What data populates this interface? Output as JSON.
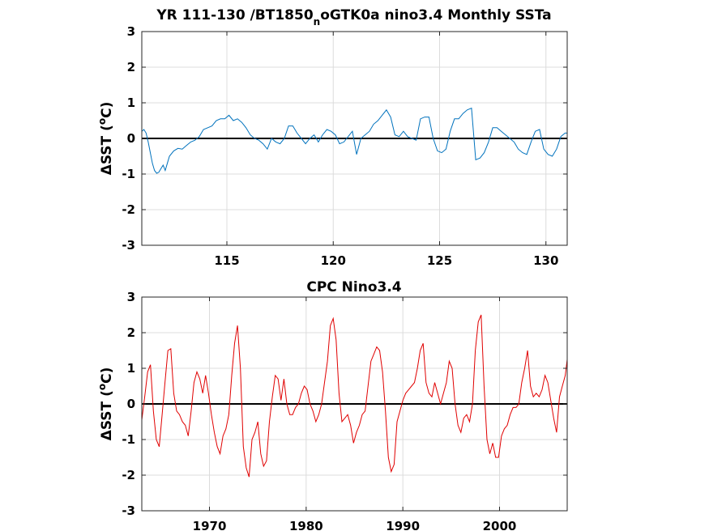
{
  "chart_data": [
    {
      "type": "line",
      "title_main": "YR 111-130 /BT1850",
      "title_sub": "n",
      "title_rest": "oGTK0a nino3.4 Monthly SSTa",
      "ylabel_delta": "Δ",
      "ylabel_text": "SST (",
      "ylabel_sup": "o",
      "ylabel_end": "C)",
      "xlim": [
        111,
        131
      ],
      "ylim": [
        -3,
        3
      ],
      "xticks": [
        115,
        120,
        125,
        130
      ],
      "yticks": [
        -3,
        -2,
        -1,
        0,
        1,
        2,
        3
      ],
      "grid": true,
      "zero_line": true,
      "line_color": "#0072bd",
      "series": [
        {
          "x": [
            111.0,
            111.1,
            111.2,
            111.3,
            111.4,
            111.5,
            111.6,
            111.7,
            111.8,
            111.9,
            112.0,
            112.1,
            112.2,
            112.3,
            112.5,
            112.7,
            112.9,
            113.1,
            113.3,
            113.5,
            113.7,
            113.9,
            114.1,
            114.3,
            114.5,
            114.7,
            114.9,
            115.1,
            115.3,
            115.5,
            115.7,
            115.9,
            116.1,
            116.3,
            116.5,
            116.7,
            116.9,
            117.1,
            117.3,
            117.5,
            117.7,
            117.9,
            118.1,
            118.3,
            118.5,
            118.7,
            118.9,
            119.1,
            119.3,
            119.5,
            119.7,
            119.9,
            120.1,
            120.3,
            120.5,
            120.7,
            120.9,
            121.1,
            121.3,
            121.5,
            121.7,
            121.9,
            122.1,
            122.3,
            122.5,
            122.7,
            122.9,
            123.1,
            123.3,
            123.5,
            123.7,
            123.9,
            124.1,
            124.3,
            124.5,
            124.7,
            124.9,
            125.1,
            125.3,
            125.5,
            125.7,
            125.9,
            126.1,
            126.3,
            126.5,
            126.7,
            126.9,
            127.1,
            127.3,
            127.5,
            127.7,
            127.9,
            128.1,
            128.3,
            128.5,
            128.7,
            128.9,
            129.1,
            129.3,
            129.5,
            129.7,
            129.9,
            130.1,
            130.3,
            130.5,
            130.7,
            130.9,
            131.0
          ],
          "y": [
            0.2,
            0.25,
            0.15,
            -0.1,
            -0.4,
            -0.7,
            -0.9,
            -0.98,
            -0.95,
            -0.85,
            -0.75,
            -0.9,
            -0.7,
            -0.5,
            -0.35,
            -0.28,
            -0.3,
            -0.2,
            -0.1,
            -0.05,
            0.05,
            0.25,
            0.3,
            0.35,
            0.5,
            0.55,
            0.55,
            0.65,
            0.5,
            0.55,
            0.45,
            0.3,
            0.1,
            0.0,
            -0.05,
            -0.15,
            -0.3,
            0.0,
            -0.1,
            -0.15,
            0.0,
            0.35,
            0.35,
            0.15,
            0.0,
            -0.15,
            0.0,
            0.1,
            -0.1,
            0.1,
            0.25,
            0.2,
            0.1,
            -0.15,
            -0.1,
            0.05,
            0.2,
            -0.45,
            0.0,
            0.1,
            0.2,
            0.4,
            0.5,
            0.65,
            0.8,
            0.6,
            0.1,
            0.05,
            0.2,
            0.05,
            0.0,
            -0.05,
            0.55,
            0.6,
            0.6,
            0.0,
            -0.35,
            -0.4,
            -0.3,
            0.2,
            0.55,
            0.55,
            0.7,
            0.8,
            0.85,
            -0.6,
            -0.55,
            -0.4,
            -0.1,
            0.3,
            0.3,
            0.2,
            0.1,
            0.0,
            -0.1,
            -0.3,
            -0.4,
            -0.45,
            -0.1,
            0.2,
            0.25,
            -0.3,
            -0.45,
            -0.5,
            -0.3,
            0.05,
            0.15,
            0.15
          ]
        }
      ]
    },
    {
      "type": "line",
      "title": "CPC Nino3.4",
      "ylabel_delta": "Δ",
      "ylabel_text": "SST (",
      "ylabel_sup": "o",
      "ylabel_end": "C)",
      "xlim": [
        1963,
        2007
      ],
      "ylim": [
        -3,
        3
      ],
      "xticks": [
        1970,
        1980,
        1990,
        2000
      ],
      "yticks": [
        -3,
        -2,
        -1,
        0,
        1,
        2,
        3
      ],
      "grid": true,
      "zero_line": true,
      "line_color": "#e00000",
      "series": [
        {
          "x": [
            1963.0,
            1963.3,
            1963.6,
            1963.9,
            1964.2,
            1964.5,
            1964.8,
            1965.1,
            1965.4,
            1965.7,
            1966.0,
            1966.3,
            1966.6,
            1966.9,
            1967.2,
            1967.5,
            1967.8,
            1968.1,
            1968.4,
            1968.7,
            1969.0,
            1969.3,
            1969.6,
            1969.9,
            1970.2,
            1970.5,
            1970.8,
            1971.1,
            1971.4,
            1971.7,
            1972.0,
            1972.3,
            1972.6,
            1972.9,
            1973.2,
            1973.5,
            1973.8,
            1974.1,
            1974.4,
            1974.7,
            1975.0,
            1975.3,
            1975.6,
            1975.9,
            1976.2,
            1976.5,
            1976.8,
            1977.1,
            1977.4,
            1977.7,
            1978.0,
            1978.3,
            1978.6,
            1978.9,
            1979.2,
            1979.5,
            1979.8,
            1980.1,
            1980.4,
            1980.7,
            1981.0,
            1981.3,
            1981.6,
            1981.9,
            1982.2,
            1982.5,
            1982.8,
            1983.1,
            1983.4,
            1983.7,
            1984.0,
            1984.3,
            1984.6,
            1984.9,
            1985.2,
            1985.5,
            1985.8,
            1986.1,
            1986.4,
            1986.7,
            1987.0,
            1987.3,
            1987.6,
            1987.9,
            1988.2,
            1988.5,
            1988.8,
            1989.1,
            1989.4,
            1989.7,
            1990.0,
            1990.3,
            1990.6,
            1990.9,
            1991.2,
            1991.5,
            1991.8,
            1992.1,
            1992.4,
            1992.7,
            1993.0,
            1993.3,
            1993.6,
            1993.9,
            1994.2,
            1994.5,
            1994.8,
            1995.1,
            1995.4,
            1995.7,
            1996.0,
            1996.3,
            1996.6,
            1996.9,
            1997.2,
            1997.5,
            1997.8,
            1998.1,
            1998.4,
            1998.7,
            1999.0,
            1999.3,
            1999.6,
            1999.9,
            2000.2,
            2000.5,
            2000.8,
            2001.1,
            2001.4,
            2001.7,
            2002.0,
            2002.3,
            2002.6,
            2002.9,
            2003.2,
            2003.5,
            2003.8,
            2004.1,
            2004.4,
            2004.7,
            2005.0,
            2005.3,
            2005.6,
            2005.9,
            2006.2,
            2006.5,
            2006.8,
            2007.0
          ],
          "y": [
            -0.45,
            0.2,
            0.9,
            1.1,
            -0.2,
            -1.0,
            -1.2,
            -0.3,
            0.6,
            1.5,
            1.55,
            0.3,
            -0.2,
            -0.3,
            -0.5,
            -0.6,
            -0.9,
            -0.2,
            0.6,
            0.9,
            0.7,
            0.3,
            0.8,
            0.3,
            -0.3,
            -0.8,
            -1.2,
            -1.4,
            -0.9,
            -0.7,
            -0.3,
            0.8,
            1.7,
            2.2,
            1.0,
            -1.2,
            -1.8,
            -2.05,
            -1.0,
            -0.8,
            -0.5,
            -1.4,
            -1.75,
            -1.6,
            -0.5,
            0.2,
            0.8,
            0.7,
            0.1,
            0.7,
            0.0,
            -0.3,
            -0.3,
            -0.1,
            0.0,
            0.3,
            0.5,
            0.4,
            0.0,
            -0.2,
            -0.5,
            -0.3,
            0.0,
            0.6,
            1.2,
            2.2,
            2.4,
            1.8,
            0.3,
            -0.5,
            -0.4,
            -0.3,
            -0.6,
            -1.1,
            -0.8,
            -0.6,
            -0.3,
            -0.2,
            0.5,
            1.2,
            1.4,
            1.6,
            1.5,
            0.9,
            -0.2,
            -1.5,
            -1.9,
            -1.7,
            -0.5,
            -0.2,
            0.1,
            0.3,
            0.4,
            0.5,
            0.6,
            1.0,
            1.5,
            1.7,
            0.6,
            0.3,
            0.2,
            0.6,
            0.3,
            0.0,
            0.3,
            0.6,
            1.2,
            1.0,
            0.0,
            -0.6,
            -0.8,
            -0.4,
            -0.3,
            -0.5,
            0.0,
            1.5,
            2.3,
            2.5,
            0.5,
            -1.0,
            -1.4,
            -1.1,
            -1.5,
            -1.5,
            -0.9,
            -0.7,
            -0.6,
            -0.3,
            -0.1,
            -0.1,
            0.0,
            0.6,
            1.0,
            1.5,
            0.5,
            0.2,
            0.3,
            0.2,
            0.4,
            0.8,
            0.6,
            0.1,
            -0.4,
            -0.8,
            0.2,
            0.5,
            0.8,
            1.25
          ]
        }
      ]
    }
  ]
}
